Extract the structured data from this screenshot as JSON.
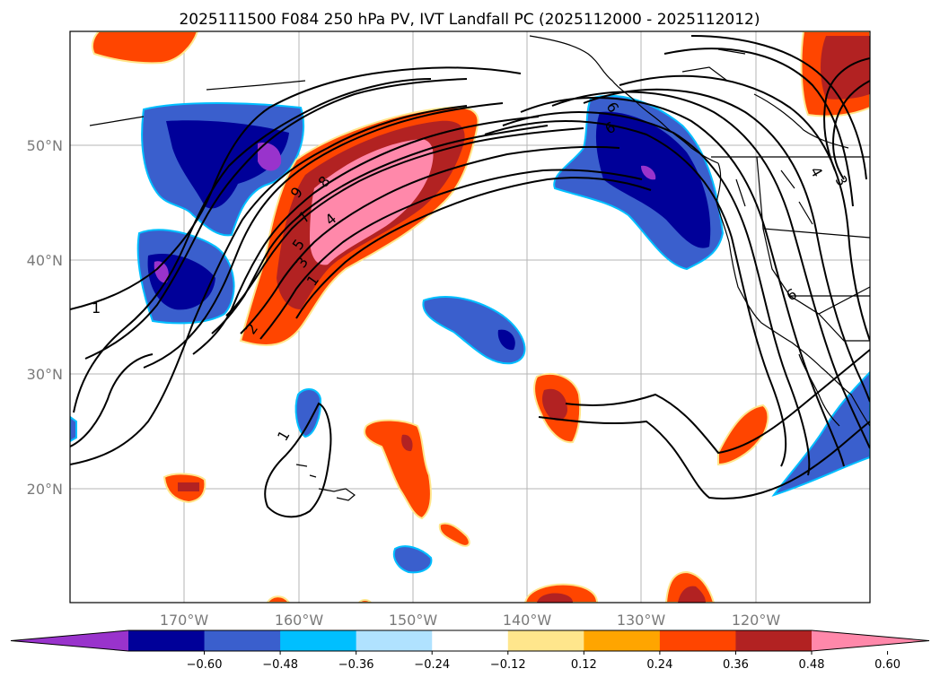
{
  "title": "2025111500 F084 250 hPa PV, IVT Landfall PC (2025112000 - 2025112012)",
  "map": {
    "lat_labels": [
      "50°N",
      "40°N",
      "30°N",
      "20°N"
    ],
    "lon_labels": [
      "170°W",
      "160°W",
      "150°W",
      "140°W",
      "130°W",
      "120°W"
    ],
    "pv_contour_labels": [
      "1",
      "1",
      "2",
      "3",
      "5",
      "7",
      "8",
      "9",
      "4",
      "6",
      "6",
      "3",
      "4",
      "1"
    ]
  },
  "colorbar": {
    "ticks": [
      "−0.60",
      "−0.48",
      "−0.36",
      "−0.24",
      "−0.12",
      "0.12",
      "0.24",
      "0.36",
      "0.48",
      "0.60"
    ],
    "colors": [
      "#9933cc",
      "#000099",
      "#3a5fcd",
      "#00bfff",
      "#b0e2ff",
      "#ffffff",
      "#ffe68c",
      "#ffa500",
      "#ff4500",
      "#b22222",
      "#ff88aa"
    ]
  },
  "colors": {
    "purple": "#9933cc",
    "navy": "#000099",
    "royal_blue": "#3a5fcd",
    "sky_blue": "#00bfff",
    "light_blue": "#b0e2ff",
    "yellow": "#ffe68c",
    "orange": "#ffa500",
    "orange_red": "#ff4500",
    "firebrick": "#b22222",
    "pink": "#ff88aa"
  }
}
